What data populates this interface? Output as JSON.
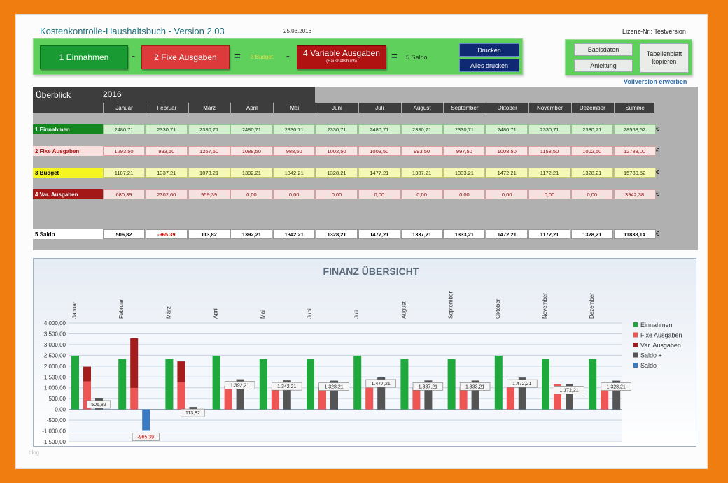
{
  "app": {
    "title": "Kostenkontrolle-Haushaltsbuch   -   Version 2.03",
    "date": "25.03.2016",
    "license": "Lizenz-Nr.: Testversion",
    "vollversion": "Vollversion erwerben",
    "watermark": "blog"
  },
  "formula": {
    "einnahmen": "1     Einnahmen",
    "minus": "-",
    "fixe": "2     Fixe Ausgaben",
    "equals": "=",
    "budget": "3 Budget",
    "variable": "4  Variable Ausgaben",
    "variable_sub": "(Haushaltsbuch)",
    "saldo": "5  Saldo"
  },
  "buttons": {
    "drucken": "Drucken",
    "alles_drucken": "Alles drucken",
    "basisdaten": "Basisdaten",
    "anleitung": "Anleitung",
    "tabellenblatt": "Tabellenblatt kopieren"
  },
  "overview": {
    "title": "Überblick",
    "year": "2016",
    "currency": "€",
    "columns": [
      "Januar",
      "Februar",
      "März",
      "April",
      "Mai",
      "Juni",
      "Juli",
      "August",
      "September",
      "Oktober",
      "November",
      "Dezember",
      "Summe"
    ],
    "rows": [
      {
        "label": "1  Einnahmen",
        "kind": "ein",
        "values": [
          "2480,71",
          "2330,71",
          "2330,71",
          "2480,71",
          "2330,71",
          "2330,71",
          "2480,71",
          "2330,71",
          "2330,71",
          "2480,71",
          "2330,71",
          "2330,71",
          "28568,52"
        ]
      },
      {
        "label": "2  Fixe Ausgaben",
        "kind": "fix",
        "values": [
          "1293,50",
          "993,50",
          "1257,50",
          "1088,50",
          "988,50",
          "1002,50",
          "1003,50",
          "993,50",
          "997,50",
          "1008,50",
          "1158,50",
          "1002,50",
          "12788,00"
        ]
      },
      {
        "label": "3  Budget",
        "kind": "bud",
        "values": [
          "1187,21",
          "1337,21",
          "1073,21",
          "1392,21",
          "1342,21",
          "1328,21",
          "1477,21",
          "1337,21",
          "1333,21",
          "1472,21",
          "1172,21",
          "1328,21",
          "15780,52"
        ]
      },
      {
        "label": "4  Var. Ausgaben",
        "kind": "var",
        "values": [
          "680,39",
          "2302,60",
          "959,39",
          "0,00",
          "0,00",
          "0,00",
          "0,00",
          "0,00",
          "0,00",
          "0,00",
          "0,00",
          "0,00",
          "3942,38"
        ]
      },
      {
        "label": "5  Saldo",
        "kind": "sal",
        "values": [
          "506,82",
          "-965,39",
          "113,82",
          "1392,21",
          "1342,21",
          "1328,21",
          "1477,21",
          "1337,21",
          "1333,21",
          "1472,21",
          "1172,21",
          "1328,21",
          "11838,14"
        ]
      }
    ]
  },
  "chart_data": {
    "type": "bar",
    "title": "FINANZ  ÜBERSICHT",
    "categories": [
      "Januar",
      "Februar",
      "März",
      "April",
      "Mai",
      "Juni",
      "Juli",
      "August",
      "September",
      "Oktober",
      "November",
      "Dezember"
    ],
    "ylim": [
      -1500,
      4000
    ],
    "yticks": [
      "4.000,00",
      "3.500,00",
      "3.000,00",
      "2.500,00",
      "2.000,00",
      "1.500,00",
      "1.000,00",
      "500,00",
      "0,00",
      "-500,00",
      "-1.000,00",
      "-1.500,00"
    ],
    "ytick_values": [
      4000,
      3500,
      3000,
      2500,
      2000,
      1500,
      1000,
      500,
      0,
      -500,
      -1000,
      -1500
    ],
    "series": [
      {
        "name": "Einnahmen",
        "color": "#1fa83c",
        "values": [
          2480.71,
          2330.71,
          2330.71,
          2480.71,
          2330.71,
          2330.71,
          2480.71,
          2330.71,
          2330.71,
          2480.71,
          2330.71,
          2330.71
        ]
      },
      {
        "name": "Fixe Ausgaben",
        "color": "#ee5555",
        "values": [
          1293.5,
          993.5,
          1257.5,
          1088.5,
          988.5,
          1002.5,
          1003.5,
          993.5,
          997.5,
          1008.5,
          1158.5,
          1002.5
        ]
      },
      {
        "name": "Var. Ausgaben",
        "color": "#a51c1c",
        "values": [
          680.39,
          2302.6,
          959.39,
          0,
          0,
          0,
          0,
          0,
          0,
          0,
          0,
          0
        ]
      },
      {
        "name": "Saldo +",
        "color": "#555555",
        "values": [
          506.82,
          0,
          113.82,
          1392.21,
          1342.21,
          1328.21,
          1477.21,
          1337.21,
          1333.21,
          1472.21,
          1172.21,
          1328.21
        ]
      },
      {
        "name": "Saldo -",
        "color": "#3a7ac0",
        "values": [
          0,
          -965.39,
          0,
          0,
          0,
          0,
          0,
          0,
          0,
          0,
          0,
          0
        ]
      }
    ],
    "data_labels": [
      "506,82",
      "-965,39",
      "113,82",
      "1.392,21",
      "1.342,21",
      "1.328,21",
      "1.477,21",
      "1.337,21",
      "1.333,21",
      "1.472,21",
      "1.172,21",
      "1.328,21"
    ],
    "legend": "right"
  }
}
